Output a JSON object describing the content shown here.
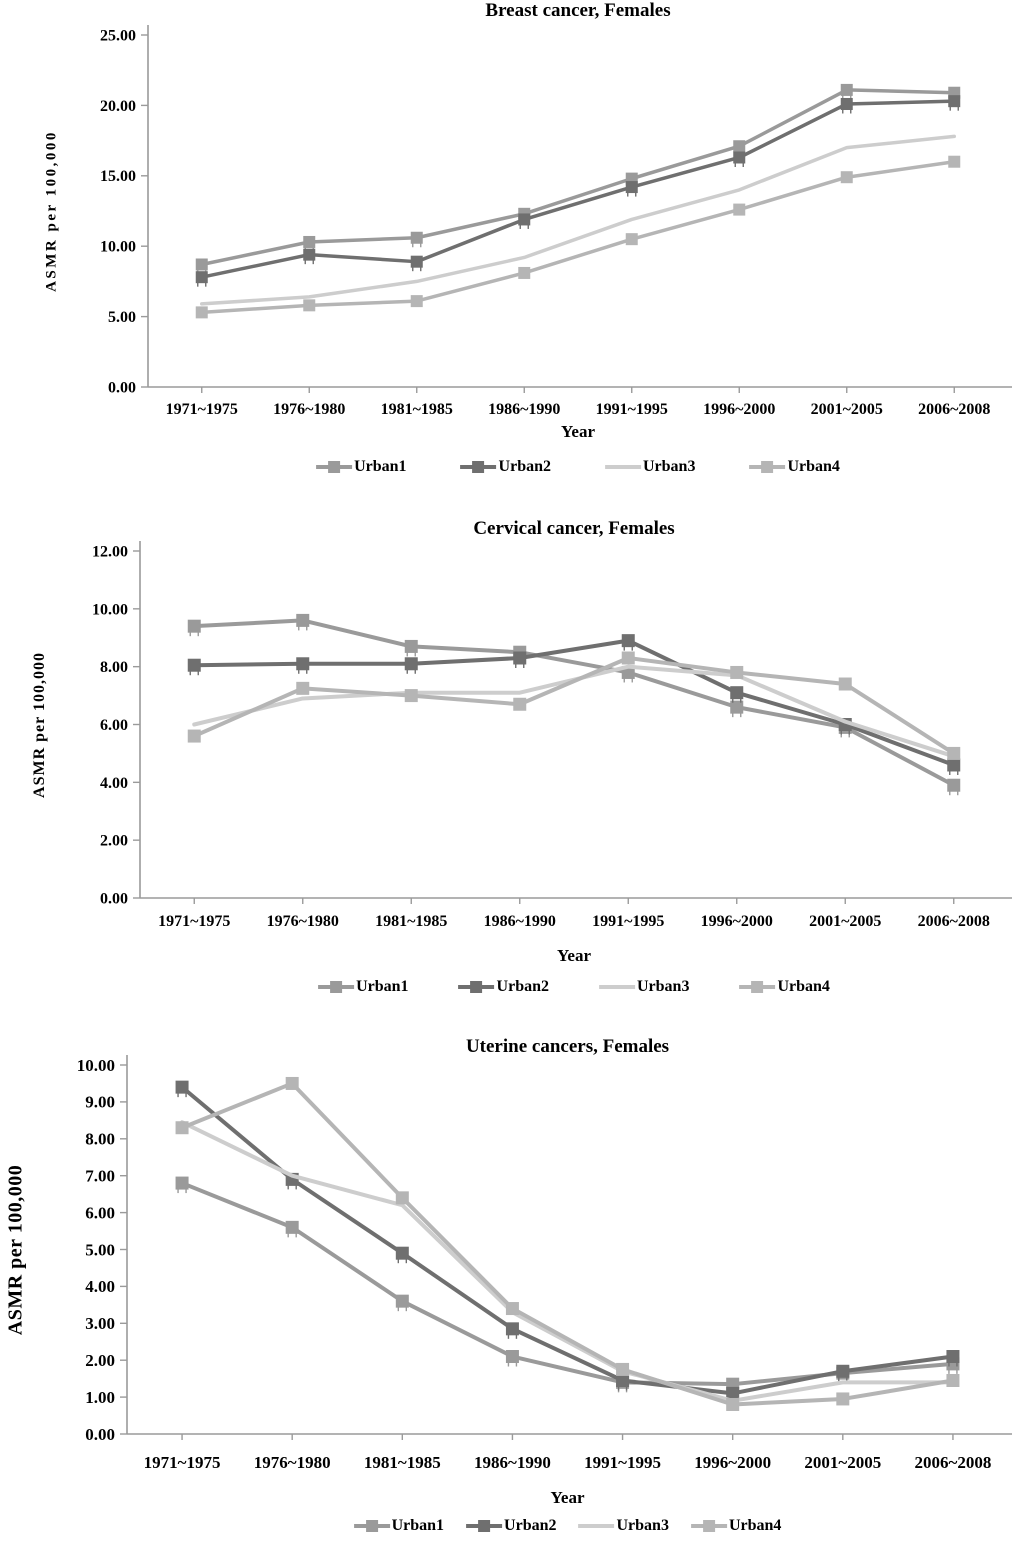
{
  "figure": {
    "background": "#ffffff",
    "series_colors": {
      "urban1": "#9a9a9a",
      "urban2": "#6f6f6f",
      "urban3": "#cdcdcd",
      "urban4": "#b5b5b5"
    },
    "axis_color": "#9a9a9a"
  },
  "chart_data": [
    {
      "type": "line",
      "title": "Breast cancer, Females",
      "xlabel": "Year",
      "ylabel": "ASMR per 100,000",
      "categories": [
        "1971~1975",
        "1976~1980",
        "1981~1985",
        "1986~1990",
        "1991~1995",
        "1996~2000",
        "2001~2005",
        "2006~2008"
      ],
      "series": [
        {
          "name": "Urban1",
          "color": "#9a9a9a",
          "marker": "square",
          "values": [
            8.7,
            10.3,
            10.6,
            12.3,
            14.8,
            17.1,
            21.1,
            20.9
          ]
        },
        {
          "name": "Urban2",
          "color": "#6f6f6f",
          "marker": "square",
          "values": [
            7.8,
            9.4,
            8.9,
            11.9,
            14.2,
            16.3,
            20.1,
            20.3
          ]
        },
        {
          "name": "Urban3",
          "color": "#cdcdcd",
          "marker": "none",
          "values": [
            5.9,
            6.4,
            7.5,
            9.2,
            11.9,
            14.0,
            17.0,
            17.8
          ]
        },
        {
          "name": "Urban4",
          "color": "#b5b5b5",
          "marker": "square",
          "values": [
            5.3,
            5.8,
            6.1,
            8.1,
            10.5,
            12.6,
            14.9,
            16.0
          ]
        }
      ],
      "ylim": [
        0,
        25
      ],
      "ytick_step": 5,
      "tick_decimals": 2,
      "grid": false,
      "legend_position": "bottom"
    },
    {
      "type": "line",
      "title": "Cervical cancer, Females",
      "xlabel": "Year",
      "ylabel": "ASMR per 100,000",
      "categories": [
        "1971~1975",
        "1976~1980",
        "1981~1985",
        "1986~1990",
        "1991~1995",
        "1996~2000",
        "2001~2005",
        "2006~2008"
      ],
      "series": [
        {
          "name": "Urban1",
          "color": "#9a9a9a",
          "marker": "square",
          "values": [
            9.4,
            9.6,
            8.7,
            8.5,
            7.8,
            6.6,
            5.9,
            3.9
          ]
        },
        {
          "name": "Urban2",
          "color": "#6f6f6f",
          "marker": "square",
          "values": [
            8.05,
            8.1,
            8.1,
            8.3,
            8.9,
            7.1,
            6.0,
            4.6
          ]
        },
        {
          "name": "Urban3",
          "color": "#cdcdcd",
          "marker": "none",
          "values": [
            6.0,
            6.9,
            7.1,
            7.1,
            8.0,
            7.7,
            6.1,
            4.9
          ]
        },
        {
          "name": "Urban4",
          "color": "#b5b5b5",
          "marker": "square",
          "values": [
            5.6,
            7.25,
            7.0,
            6.7,
            8.3,
            7.8,
            7.4,
            5.0
          ]
        }
      ],
      "ylim": [
        0,
        12
      ],
      "ytick_step": 2,
      "tick_decimals": 2,
      "grid": false,
      "legend_position": "bottom"
    },
    {
      "type": "line",
      "title": "Uterine cancers, Females",
      "xlabel": "Year",
      "ylabel": "ASMR per 100,000",
      "categories": [
        "1971~1975",
        "1976~1980",
        "1981~1985",
        "1986~1990",
        "1991~1995",
        "1996~2000",
        "2001~2005",
        "2006~2008"
      ],
      "series": [
        {
          "name": "Urban1",
          "color": "#9a9a9a",
          "marker": "square",
          "values": [
            6.8,
            5.6,
            3.6,
            2.1,
            1.4,
            1.35,
            1.65,
            1.9
          ]
        },
        {
          "name": "Urban2",
          "color": "#6f6f6f",
          "marker": "square",
          "values": [
            9.4,
            6.9,
            4.9,
            2.85,
            1.45,
            1.1,
            1.7,
            2.1
          ]
        },
        {
          "name": "Urban3",
          "color": "#cdcdcd",
          "marker": "none",
          "values": [
            8.45,
            7.0,
            6.2,
            3.3,
            1.7,
            0.9,
            1.4,
            1.4
          ]
        },
        {
          "name": "Urban4",
          "color": "#b5b5b5",
          "marker": "square",
          "values": [
            8.3,
            9.5,
            6.4,
            3.4,
            1.75,
            0.8,
            0.95,
            1.45
          ]
        }
      ],
      "ylim": [
        0,
        10
      ],
      "ytick_step": 1,
      "tick_decimals": 2,
      "grid": false,
      "legend_position": "bottom"
    }
  ]
}
